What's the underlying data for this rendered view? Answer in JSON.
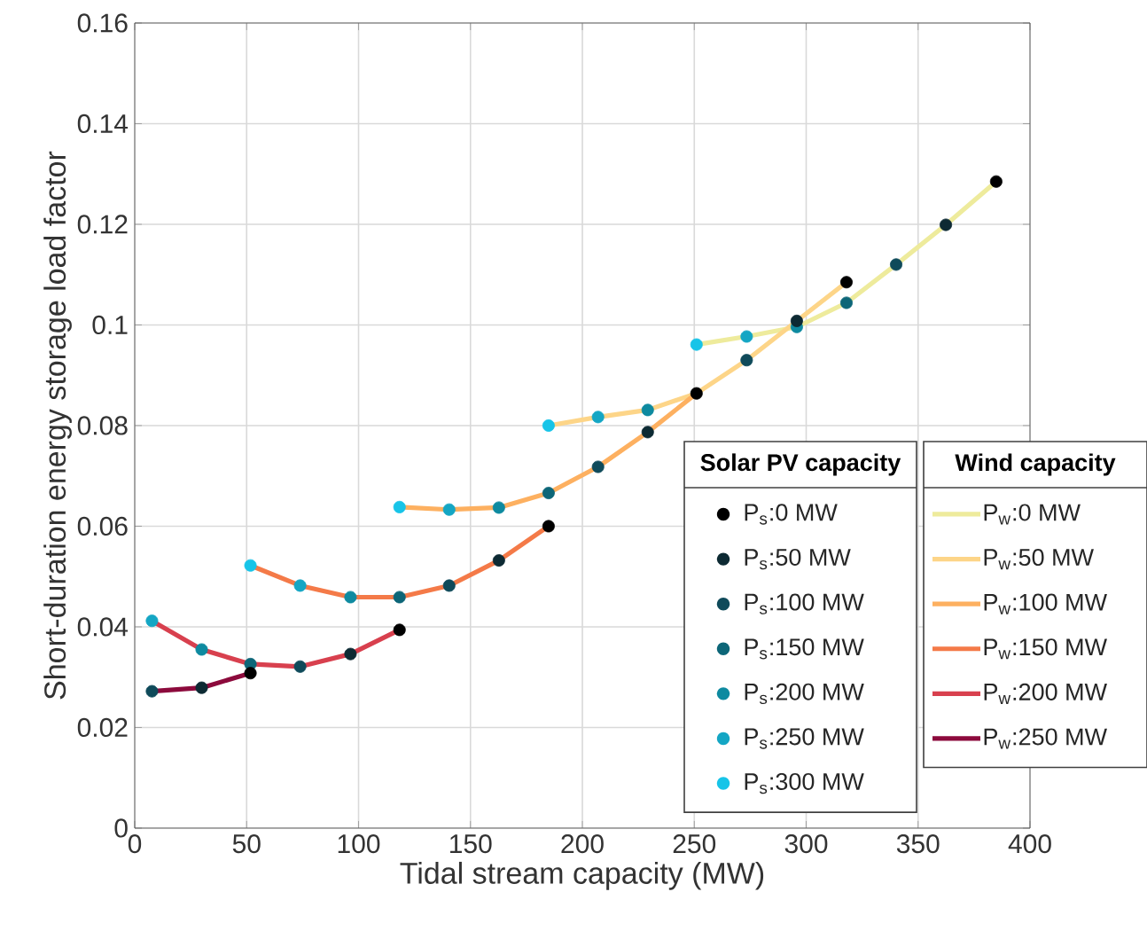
{
  "chart_data": {
    "type": "scatter",
    "xlabel": "Tidal stream capacity (MW)",
    "ylabel": "Short-duration energy storage load factor",
    "legend_title": [
      "Solar PV capacity",
      "Wind capacity"
    ],
    "xlim": [
      0,
      400
    ],
    "ylim": [
      0,
      0.16
    ],
    "xticks": [
      0,
      50,
      100,
      150,
      200,
      250,
      300,
      350,
      400
    ],
    "yticks": [
      0,
      0.02,
      0.04,
      0.06,
      0.08,
      0.1,
      0.12,
      0.14,
      0.16
    ],
    "grid": true,
    "legend": "bottom right",
    "series": [
      {
        "name": "P$_{s}$:0 MW",
        "marker": "circle",
        "color": "#000000",
        "x": [
          384.9,
          318,
          251,
          184.9,
          118.3,
          51.7
        ],
        "values": [
          0.1285,
          0.1085,
          0.0864,
          0.06,
          0.0394,
          0.0308
        ]
      },
      {
        "name": "P$_{s}$:50 MW",
        "marker": "circle",
        "color": "#0d2a33",
        "x": [
          362.4,
          295.8,
          229.2,
          162.7,
          96.4,
          29.9
        ],
        "values": [
          0.1199,
          0.1008,
          0.0787,
          0.0532,
          0.0346,
          0.0279
        ]
      },
      {
        "name": "P$_{s}$:100 MW",
        "marker": "circle",
        "color": "#0f4a5a",
        "x": [
          340.2,
          273.4,
          207,
          140.5,
          73.9,
          7.7
        ],
        "values": [
          0.112,
          0.093,
          0.0718,
          0.0482,
          0.0321,
          0.0272
        ]
      },
      {
        "name": "P$_{s}$:150 MW",
        "marker": "circle",
        "color": "#0d6678",
        "x": [
          318,
          251,
          184.9,
          118.3,
          51.7
        ],
        "values": [
          0.1044,
          null,
          0.0666,
          0.0459,
          0.0326
        ]
      },
      {
        "name": "P$_{s}$:200 MW",
        "marker": "circle",
        "color": "#0e8aa0",
        "x": [
          295.8,
          229.2,
          162.7,
          96.4,
          29.9
        ],
        "values": [
          0.0996,
          0.0831,
          0.0637,
          0.0459,
          0.0355
        ]
      },
      {
        "name": "P$_{s}$:250 MW",
        "marker": "circle",
        "color": "#14a6c4",
        "x": [
          273.4,
          207,
          140.5,
          73.9,
          7.7
        ],
        "values": [
          0.0977,
          0.0817,
          0.0633,
          0.0482,
          0.0412
        ]
      },
      {
        "name": "P$_{s}$:300 MW",
        "marker": "circle",
        "color": "#17c4e8",
        "x": [
          251,
          184.9,
          118.3,
          51.7
        ],
        "values": [
          0.0961,
          0.08,
          0.0638,
          0.0522
        ]
      },
      {
        "name": "P$_{w}$:0 MW",
        "type": "line",
        "color": "#eeeb9c",
        "x": [
          251,
          273.4,
          295.8,
          318,
          340.2,
          362.4,
          384.9
        ],
        "values": [
          0.0961,
          0.0977,
          0.0996,
          0.1044,
          0.112,
          0.1199,
          0.1285
        ]
      },
      {
        "name": "P$_{w}$:50 MW",
        "type": "line",
        "color": "#fdd588",
        "x": [
          184.9,
          207,
          229.2,
          251,
          273.4,
          295.8,
          318
        ],
        "values": [
          0.08,
          0.0817,
          0.0831,
          0.0864,
          0.093,
          0.1008,
          0.1085
        ]
      },
      {
        "name": "P$_{w}$:100 MW",
        "type": "line",
        "color": "#fdb060",
        "x": [
          118.3,
          140.5,
          162.7,
          184.9,
          207,
          229.2,
          251
        ],
        "values": [
          0.0638,
          0.0633,
          0.0637,
          0.0666,
          0.0718,
          0.0787,
          0.0864
        ]
      },
      {
        "name": "P$_{w}$:150 MW",
        "type": "line",
        "color": "#f47a48",
        "x": [
          51.7,
          73.9,
          96.4,
          118.3,
          140.5,
          162.7,
          184.9
        ],
        "values": [
          0.0522,
          0.0482,
          0.0459,
          0.0459,
          0.0482,
          0.0532,
          0.06
        ]
      },
      {
        "name": "P$_{w}$:200 MW",
        "type": "line",
        "color": "#d8404e",
        "x": [
          7.7,
          29.9,
          51.7,
          73.9,
          96.4,
          118.3
        ],
        "values": [
          0.0412,
          0.0355,
          0.0326,
          0.0321,
          0.0346,
          0.0394
        ]
      },
      {
        "name": "P$_{w}$:250 MW",
        "type": "line",
        "color": "#8c0a3c",
        "x": [
          7.7,
          29.9,
          51.7
        ],
        "values": [
          0.0272,
          0.0279,
          0.0308
        ]
      }
    ]
  }
}
